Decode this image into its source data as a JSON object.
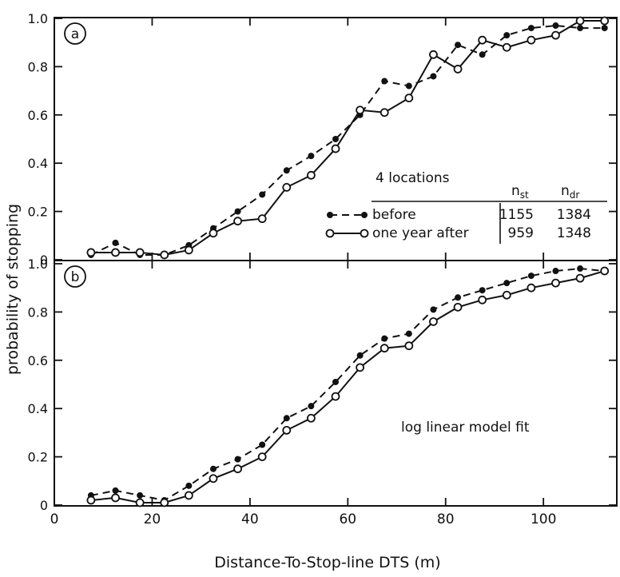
{
  "chart_data": [
    {
      "type": "line",
      "panel_label": "a",
      "x": [
        7.5,
        12.5,
        17.5,
        22.5,
        27.5,
        32.5,
        37.5,
        42.5,
        47.5,
        52.5,
        57.5,
        62.5,
        67.5,
        72.5,
        77.5,
        82.5,
        87.5,
        92.5,
        97.5,
        102.5,
        107.5,
        112.5
      ],
      "series": [
        {
          "name": "before",
          "values": [
            0.02,
            0.07,
            0.02,
            0.02,
            0.06,
            0.13,
            0.2,
            0.27,
            0.37,
            0.43,
            0.5,
            0.6,
            0.74,
            0.72,
            0.76,
            0.89,
            0.85,
            0.93,
            0.96,
            0.97,
            0.96,
            0.96
          ]
        },
        {
          "name": "one year after",
          "values": [
            0.03,
            0.03,
            0.03,
            0.02,
            0.04,
            0.11,
            0.16,
            0.17,
            0.3,
            0.35,
            0.46,
            0.62,
            0.61,
            0.67,
            0.85,
            0.79,
            0.91,
            0.88,
            0.91,
            0.93,
            0.99,
            0.99
          ]
        }
      ],
      "ylim": [
        0,
        1.0
      ],
      "xlim": [
        0,
        115
      ],
      "yticks": [
        "0",
        "0.2",
        "0.4",
        "0.6",
        "0.8",
        "1.0"
      ],
      "legend": {
        "title": "4 locations",
        "col_n_st": "n",
        "col_n_st_sub": "st",
        "col_n_dr": "n",
        "col_n_dr_sub": "dr",
        "rows": [
          {
            "label": "before",
            "n_st": "1155",
            "n_dr": "1384"
          },
          {
            "label": "one year after",
            "n_st": "959",
            "n_dr": "1348"
          }
        ]
      }
    },
    {
      "type": "line",
      "panel_label": "b",
      "x": [
        7.5,
        12.5,
        17.5,
        22.5,
        27.5,
        32.5,
        37.5,
        42.5,
        47.5,
        52.5,
        57.5,
        62.5,
        67.5,
        72.5,
        77.5,
        82.5,
        87.5,
        92.5,
        97.5,
        102.5,
        107.5,
        112.5
      ],
      "series": [
        {
          "name": "before",
          "values": [
            0.04,
            0.06,
            0.04,
            0.02,
            0.08,
            0.15,
            0.19,
            0.25,
            0.36,
            0.41,
            0.51,
            0.62,
            0.69,
            0.71,
            0.81,
            0.86,
            0.89,
            0.92,
            0.95,
            0.97,
            0.98,
            0.97
          ]
        },
        {
          "name": "one year after",
          "values": [
            0.02,
            0.03,
            0.01,
            0.01,
            0.04,
            0.11,
            0.15,
            0.2,
            0.31,
            0.36,
            0.45,
            0.57,
            0.65,
            0.66,
            0.76,
            0.82,
            0.85,
            0.87,
            0.9,
            0.92,
            0.94,
            0.97
          ]
        }
      ],
      "ylim": [
        0,
        1.0
      ],
      "xlim": [
        0,
        115
      ],
      "yticks": [
        "0",
        "0.2",
        "0.4",
        "0.6",
        "0.8",
        "1.0"
      ],
      "xticks": [
        "0",
        "20",
        "40",
        "60",
        "80",
        "100"
      ],
      "annotation": "log linear model fit"
    }
  ],
  "xlabel": "Distance-To-Stop-line DTS (m)",
  "ylabel": "probability of stopping"
}
